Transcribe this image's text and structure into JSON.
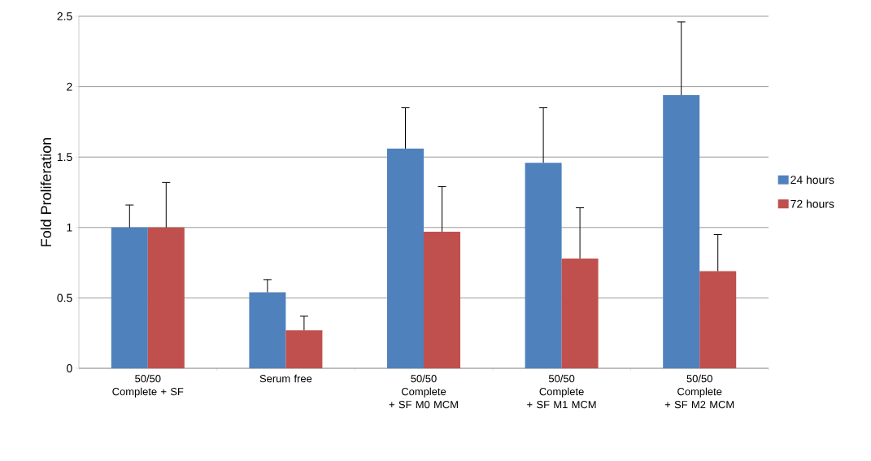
{
  "chart_data": {
    "type": "bar",
    "ylabel": "Fold Proliferation",
    "categories": [
      "50/50 Complete + SF",
      "Serum free",
      "50/50 Complete + SF M0 MCM",
      "50/50 Complete + SF M1 MCM",
      "50/50 Complete + SF M2 MCM"
    ],
    "series": [
      {
        "name": "24 hours",
        "color": "#4f81bd",
        "values": [
          1.0,
          0.54,
          1.56,
          1.46,
          1.94
        ],
        "errors": [
          [
            1.0,
            1.16
          ],
          [
            0.54,
            0.63
          ],
          [
            1.56,
            1.85
          ],
          [
            1.46,
            1.85
          ],
          [
            1.94,
            2.46
          ]
        ]
      },
      {
        "name": "72 hours",
        "color": "#c0504d",
        "values": [
          1.0,
          0.27,
          0.97,
          0.78,
          0.69
        ],
        "errors": [
          [
            1.0,
            1.32
          ],
          [
            0.27,
            0.37
          ],
          [
            0.97,
            1.29
          ],
          [
            0.78,
            1.14
          ],
          [
            0.69,
            0.95
          ]
        ]
      }
    ],
    "ylim": [
      0,
      2.5
    ],
    "yticks": [
      0,
      0.5,
      1,
      1.5,
      2,
      2.5
    ],
    "grid": "y",
    "legend": "right"
  }
}
